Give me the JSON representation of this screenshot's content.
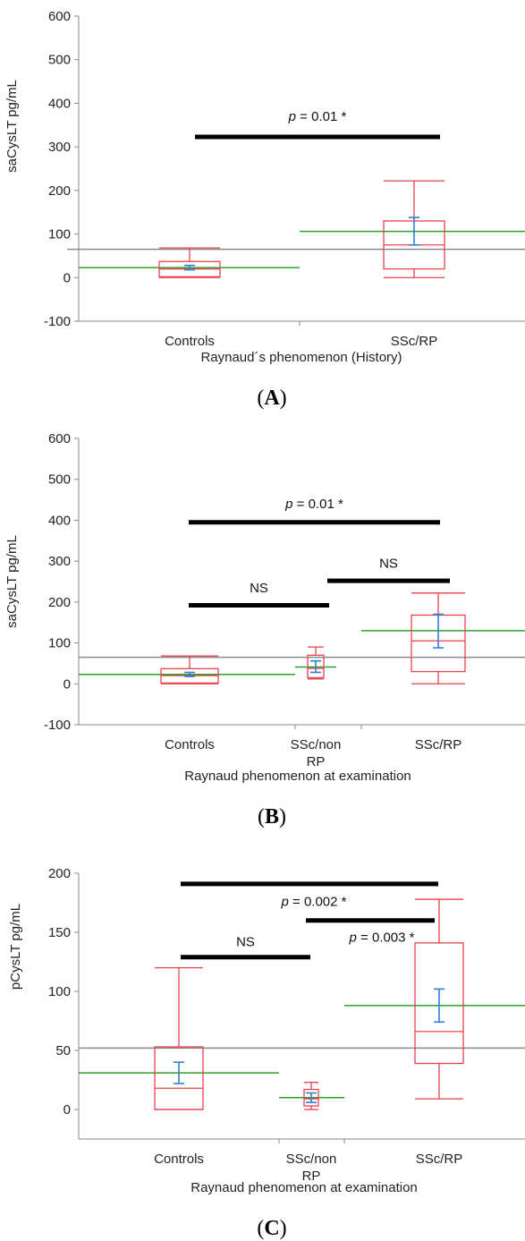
{
  "chart_data": [
    {
      "type": "box",
      "panel_label": "A",
      "ylabel": "saCysLT pg/mL",
      "xlabel": "Raynaud´s phenomenon (History)",
      "ylim": [
        -100,
        600
      ],
      "yticks": [
        "600",
        "500",
        "400",
        "300",
        "200",
        "100",
        "0",
        "-100"
      ],
      "ytick_values": [
        600,
        500,
        400,
        300,
        200,
        100,
        0,
        -100
      ],
      "grand_mean": 65,
      "categories": [
        {
          "label": [
            "Controls"
          ],
          "min": 0,
          "q1": 2,
          "median": 20,
          "q3": 37,
          "max": 68,
          "mean": 23,
          "ci_low": 18,
          "ci_high": 28
        },
        {
          "label": [
            "SSc/RP"
          ],
          "min": 0,
          "q1": 20,
          "median": 75,
          "q3": 130,
          "max": 222,
          "mean": 106,
          "ci_low": 75,
          "ci_high": 138
        }
      ],
      "annotations": [
        {
          "from": 0,
          "to": 1,
          "y": 323,
          "p_label": "p",
          "text": " = 0.01 *",
          "text_y": 370
        }
      ]
    },
    {
      "type": "box",
      "panel_label": "B",
      "ylabel": "saCysLT pg/mL",
      "xlabel": "Raynaud phenomenon at examination",
      "ylim": [
        -100,
        600
      ],
      "yticks": [
        "600",
        "500",
        "400",
        "300",
        "200",
        "100",
        "0",
        "-100"
      ],
      "ytick_values": [
        600,
        500,
        400,
        300,
        200,
        100,
        0,
        -100
      ],
      "grand_mean": 65,
      "categories": [
        {
          "label": [
            "Controls"
          ],
          "min": 0,
          "q1": 2,
          "median": 20,
          "q3": 37,
          "max": 68,
          "mean": 23,
          "ci_low": 18,
          "ci_high": 28
        },
        {
          "label": [
            "SSc/non",
            "RP"
          ],
          "min": 12,
          "q1": 15,
          "median": 38,
          "q3": 70,
          "max": 90,
          "mean": 41,
          "ci_low": 28,
          "ci_high": 56
        },
        {
          "label": [
            "SSc/RP"
          ],
          "min": 0,
          "q1": 30,
          "median": 105,
          "q3": 168,
          "max": 222,
          "mean": 130,
          "ci_low": 88,
          "ci_high": 170
        }
      ],
      "annotations": [
        {
          "from": 0,
          "to": 2,
          "y": 395,
          "p_label": "p",
          "text": " = 0.01 *",
          "text_y": 440
        },
        {
          "from": 0,
          "to": 1,
          "y": 192,
          "p_label": "",
          "text": "NS",
          "text_y": 235
        },
        {
          "from": 1,
          "to": 2,
          "y": 252,
          "p_label": "",
          "text": "NS",
          "text_y": 295
        }
      ]
    },
    {
      "type": "box",
      "panel_label": "C",
      "ylabel": "pCysLT pg/mL",
      "xlabel": "Raynaud phenomenon at examination",
      "ylim": [
        -25,
        200
      ],
      "yticks": [
        "200",
        "150",
        "100",
        "50",
        "0"
      ],
      "ytick_values": [
        200,
        150,
        100,
        50,
        0
      ],
      "grand_mean": 52,
      "categories": [
        {
          "label": [
            "Controls"
          ],
          "min": 0,
          "q1": 0,
          "median": 18,
          "q3": 53,
          "max": 120,
          "mean": 31,
          "ci_low": 22,
          "ci_high": 40
        },
        {
          "label": [
            "SSc/non",
            "RP"
          ],
          "min": 0,
          "q1": 3,
          "median": 9,
          "q3": 17,
          "max": 23,
          "mean": 10,
          "ci_low": 6,
          "ci_high": 14
        },
        {
          "label": [
            "SSc/RP"
          ],
          "min": 9,
          "q1": 39,
          "median": 66,
          "q3": 141,
          "max": 178,
          "mean": 88,
          "ci_low": 74,
          "ci_high": 102
        }
      ],
      "annotations": [
        {
          "from": 0,
          "to": 2,
          "y": 191,
          "p_label": "p",
          "text": " = 0.002 *",
          "text_y": 176
        },
        {
          "from": 1,
          "to": 2,
          "y": 160,
          "p_label": "p",
          "text": " = 0.003 *",
          "text_y": 146
        },
        {
          "from": 0,
          "to": 1,
          "y": 129,
          "p_label": "",
          "text": "NS",
          "text_y": 142
        }
      ]
    }
  ]
}
